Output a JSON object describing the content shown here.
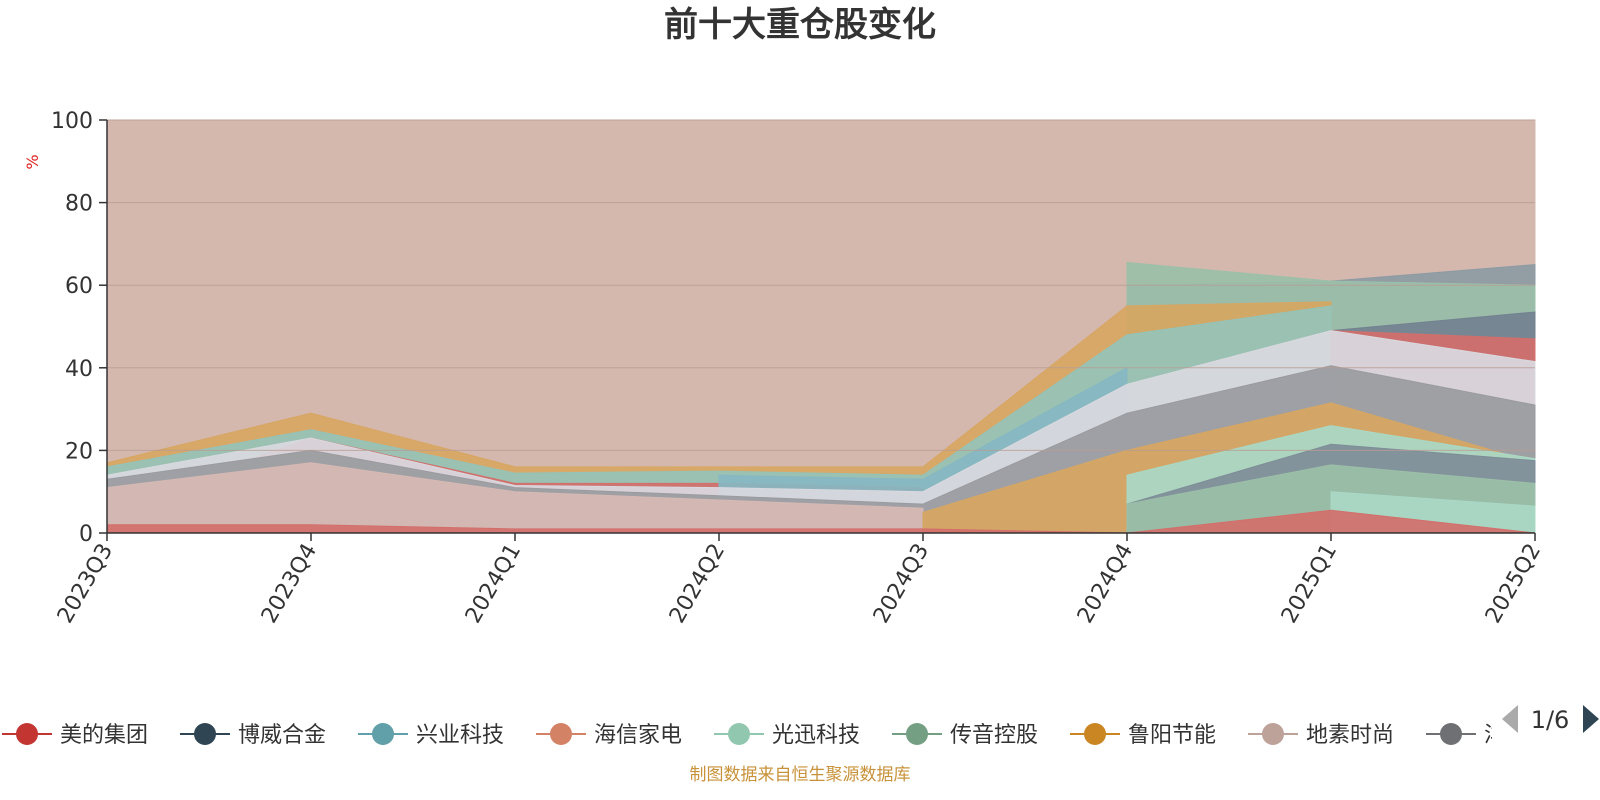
{
  "chart_data": {
    "type": "area",
    "title": "前十大重仓股变化",
    "ylabel": "%",
    "ylim": [
      0,
      100
    ],
    "yticks": [
      0,
      20,
      40,
      60,
      80,
      100
    ],
    "categories": [
      "2023Q3",
      "2023Q4",
      "2024Q1",
      "2024Q2",
      "2024Q3",
      "2024Q4",
      "2025Q1",
      "2025Q2"
    ],
    "grid": true,
    "series": [
      {
        "color": "#d4b8ae",
        "values": [
          100,
          100,
          100,
          100,
          100,
          100,
          100,
          100
        ]
      },
      {
        "color": "#8d9aa3",
        "values": [
          null,
          null,
          null,
          null,
          null,
          60,
          61,
          65
        ]
      },
      {
        "color": "#9bbfa8",
        "values": [
          null,
          null,
          null,
          null,
          null,
          65.5,
          61,
          60
        ]
      },
      {
        "color": "#d7a662",
        "values": [
          17,
          29,
          16,
          16,
          16,
          55,
          56,
          null
        ]
      },
      {
        "color": "#95c3b8",
        "values": [
          16,
          25,
          14.5,
          15,
          14,
          48,
          55,
          null
        ]
      },
      {
        "color": "#738190",
        "values": [
          null,
          null,
          null,
          null,
          12,
          null,
          49,
          53.5
        ]
      },
      {
        "color": "#d36f6b",
        "values": [
          5.5,
          23,
          12,
          12,
          11,
          null,
          49,
          47
        ]
      },
      {
        "color": "#87b7c2",
        "values": [
          null,
          null,
          null,
          14,
          13,
          40,
          null,
          null
        ]
      },
      {
        "color": "#d9d9df",
        "values": [
          14,
          23,
          11.5,
          11,
          10,
          36,
          49,
          41.5
        ]
      },
      {
        "color": "#9a9b9f",
        "values": [
          13,
          20,
          11,
          9,
          7,
          29,
          40.5,
          31
        ]
      },
      {
        "color": "#d6b9b4",
        "values": [
          11,
          17,
          10,
          8,
          6,
          null,
          null,
          22.5
        ]
      },
      {
        "color": "#d7a662",
        "values": [
          null,
          null,
          null,
          null,
          5,
          20,
          31.5,
          17
        ]
      },
      {
        "color": "#a9d8c5",
        "values": [
          null,
          null,
          null,
          null,
          null,
          14,
          26,
          18
        ]
      },
      {
        "color": "#7e8d98",
        "values": [
          null,
          null,
          null,
          null,
          null,
          7,
          21.5,
          17.5
        ]
      },
      {
        "color": "#9bbfa8",
        "values": [
          null,
          null,
          null,
          null,
          null,
          7,
          16.5,
          12
        ]
      },
      {
        "color": "#a9d8c5",
        "values": [
          null,
          null,
          null,
          null,
          null,
          null,
          10,
          6.5
        ]
      },
      {
        "color": "#d36f6b",
        "values": [
          2,
          2,
          1,
          1,
          1,
          0,
          5.5,
          0
        ]
      }
    ],
    "legend": {
      "placement": "bottom",
      "items": [
        {
          "name": "美的集团",
          "color": "#c23531"
        },
        {
          "name": "博威合金",
          "color": "#2f4554"
        },
        {
          "name": "兴业科技",
          "color": "#61a0a8"
        },
        {
          "name": "海信家电",
          "color": "#d48265"
        },
        {
          "name": "光迅科技",
          "color": "#91c7ae"
        },
        {
          "name": "传音控股",
          "color": "#749f83"
        },
        {
          "name": "鲁阳节能",
          "color": "#ca8622"
        },
        {
          "name": "地素时尚",
          "color": "#bda29a"
        },
        {
          "name": "洋",
          "color": "#6e7074"
        }
      ],
      "page": "1/6"
    },
    "source": "制图数据来自恒生聚源数据库"
  }
}
